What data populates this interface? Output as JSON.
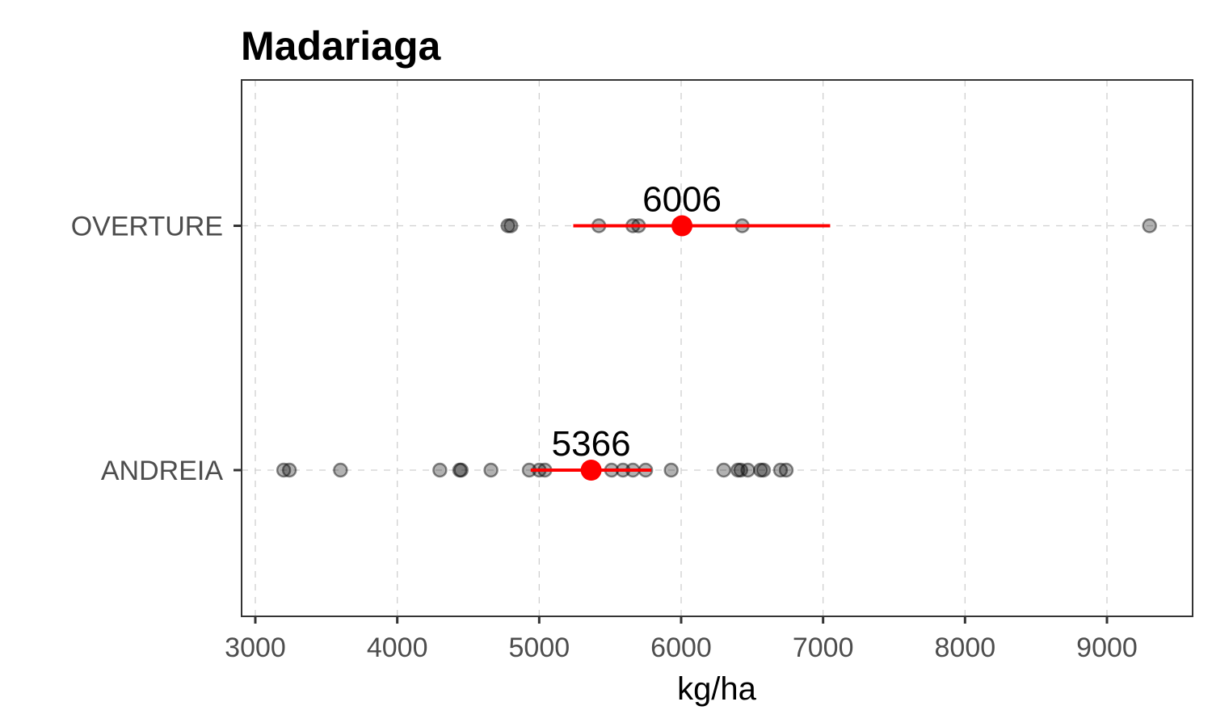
{
  "chart_data": {
    "type": "scatter",
    "title": "Madariaga",
    "xlabel": "kg/ha",
    "ylabel": "",
    "xlim": [
      2900,
      9600
    ],
    "xticks": [
      3000,
      4000,
      5000,
      6000,
      7000,
      8000,
      9000
    ],
    "tick_labels": [
      "3000",
      "4000",
      "5000",
      "6000",
      "7000",
      "8000",
      "9000"
    ],
    "grid": true,
    "legend": "none",
    "categories": [
      "ANDREIA",
      "OVERTURE"
    ],
    "colors": {
      "observation": "#000000",
      "mean": "#ff0000"
    },
    "series": [
      {
        "category": "OVERTURE",
        "label": "6006",
        "mean": 6006,
        "interval": [
          5240,
          7050
        ],
        "values": [
          4780,
          4800,
          5420,
          5660,
          5700,
          6430,
          9300
        ]
      },
      {
        "category": "ANDREIA",
        "label": "5366",
        "mean": 5366,
        "interval": [
          4940,
          5790
        ],
        "values": [
          3200,
          3240,
          3600,
          4300,
          4440,
          4450,
          4660,
          4930,
          5000,
          5040,
          5510,
          5590,
          5660,
          5750,
          5930,
          6300,
          6400,
          6420,
          6470,
          6560,
          6580,
          6700,
          6740
        ]
      }
    ]
  }
}
